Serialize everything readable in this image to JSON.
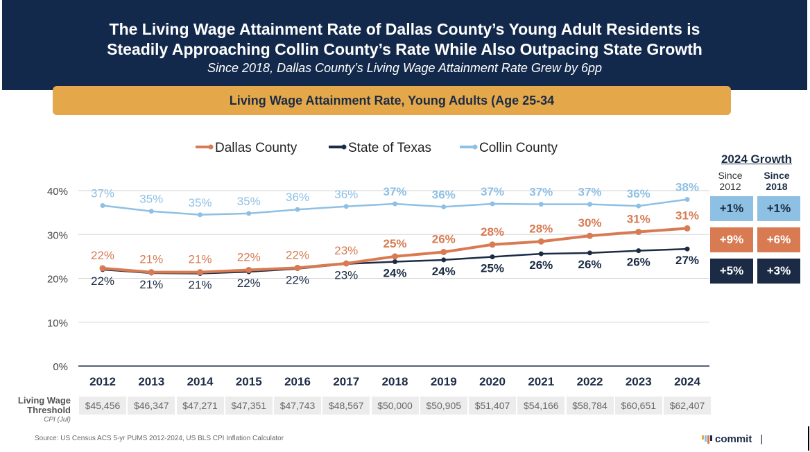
{
  "header": {
    "title_line1": "The Living Wage Attainment Rate of Dallas County’s Young Adult Residents is",
    "title_line2": "Steadily Approaching Collin County’s Rate While Also Outpacing State Growth",
    "subtitle": "Since 2018, Dallas County’s Living Wage Attainment Rate Grew by 6pp"
  },
  "banner": {
    "text": "Living Wage Attainment Rate, Young Adults (Age 25-34"
  },
  "colors": {
    "dallas": "#d87a52",
    "texas": "#1b2b45",
    "collin": "#8ec0e4",
    "header_bg": "#13294b",
    "banner_bg": "#e4a84a"
  },
  "chart_data": {
    "type": "line",
    "title": "Living Wage Attainment Rate, Young Adults (Age 25-34",
    "categories": [
      "2012",
      "2013",
      "2014",
      "2015",
      "2016",
      "2017",
      "2018",
      "2019",
      "2020",
      "2021",
      "2022",
      "2023",
      "2024"
    ],
    "ylim": [
      0,
      40
    ],
    "yticks": [
      0,
      10,
      20,
      30,
      40
    ],
    "ytick_labels": [
      "0%",
      "10%",
      "20%",
      "30%",
      "40%"
    ],
    "xlabel": "",
    "ylabel": "",
    "legend_position": "top",
    "series": [
      {
        "name": "Dallas County",
        "key": "dallas",
        "values": [
          22.3,
          21.4,
          21.4,
          21.9,
          22.4,
          23.4,
          25.0,
          26.0,
          27.7,
          28.4,
          29.7,
          30.6,
          31.4
        ],
        "labels": [
          "22%",
          "21%",
          "21%",
          "22%",
          "22%",
          "23%",
          "25%",
          "26%",
          "28%",
          "28%",
          "30%",
          "31%",
          "31%"
        ]
      },
      {
        "name": "State of Texas",
        "key": "texas",
        "values": [
          22.0,
          21.2,
          21.1,
          21.5,
          22.2,
          23.3,
          23.8,
          24.2,
          24.9,
          25.6,
          25.8,
          26.3,
          26.7
        ],
        "labels": [
          "22%",
          "21%",
          "21%",
          "22%",
          "22%",
          "23%",
          "24%",
          "24%",
          "25%",
          "26%",
          "26%",
          "26%",
          "27%"
        ]
      },
      {
        "name": "Collin County",
        "key": "collin",
        "values": [
          36.6,
          35.3,
          34.5,
          34.8,
          35.7,
          36.4,
          37.0,
          36.3,
          37.0,
          36.9,
          36.9,
          36.5,
          38.0
        ],
        "labels": [
          "37%",
          "35%",
          "35%",
          "35%",
          "36%",
          "36%",
          "37%",
          "36%",
          "37%",
          "37%",
          "37%",
          "36%",
          "38%"
        ]
      }
    ]
  },
  "growth": {
    "title": "2024 Growth",
    "col1": {
      "line1": "Since",
      "line2": "2012"
    },
    "col2": {
      "line1": "Since",
      "line2": "2018"
    },
    "rows": [
      {
        "series": "collin",
        "since2012": "+1%",
        "since2018": "+1%"
      },
      {
        "series": "dallas",
        "since2012": "+9%",
        "since2018": "+6%"
      },
      {
        "series": "texas",
        "since2012": "+5%",
        "since2018": "+3%"
      }
    ]
  },
  "threshold": {
    "label_line1": "Living Wage",
    "label_line2": "Threshold",
    "sublabel": "CPI (Jul)",
    "values": [
      "$45,456",
      "$46,347",
      "$47,271",
      "$47,351",
      "$47,743",
      "$48,567",
      "$50,000",
      "$50,905",
      "$51,407",
      "$54,166",
      "$58,784",
      "$60,651",
      "$62,407"
    ]
  },
  "footer": {
    "source": "Source:  US Census ACS 5-yr PUMS 2012-2024, US BLS CPI Inflation Calculator",
    "logo_text": "commit",
    "logo_sep": "|"
  }
}
